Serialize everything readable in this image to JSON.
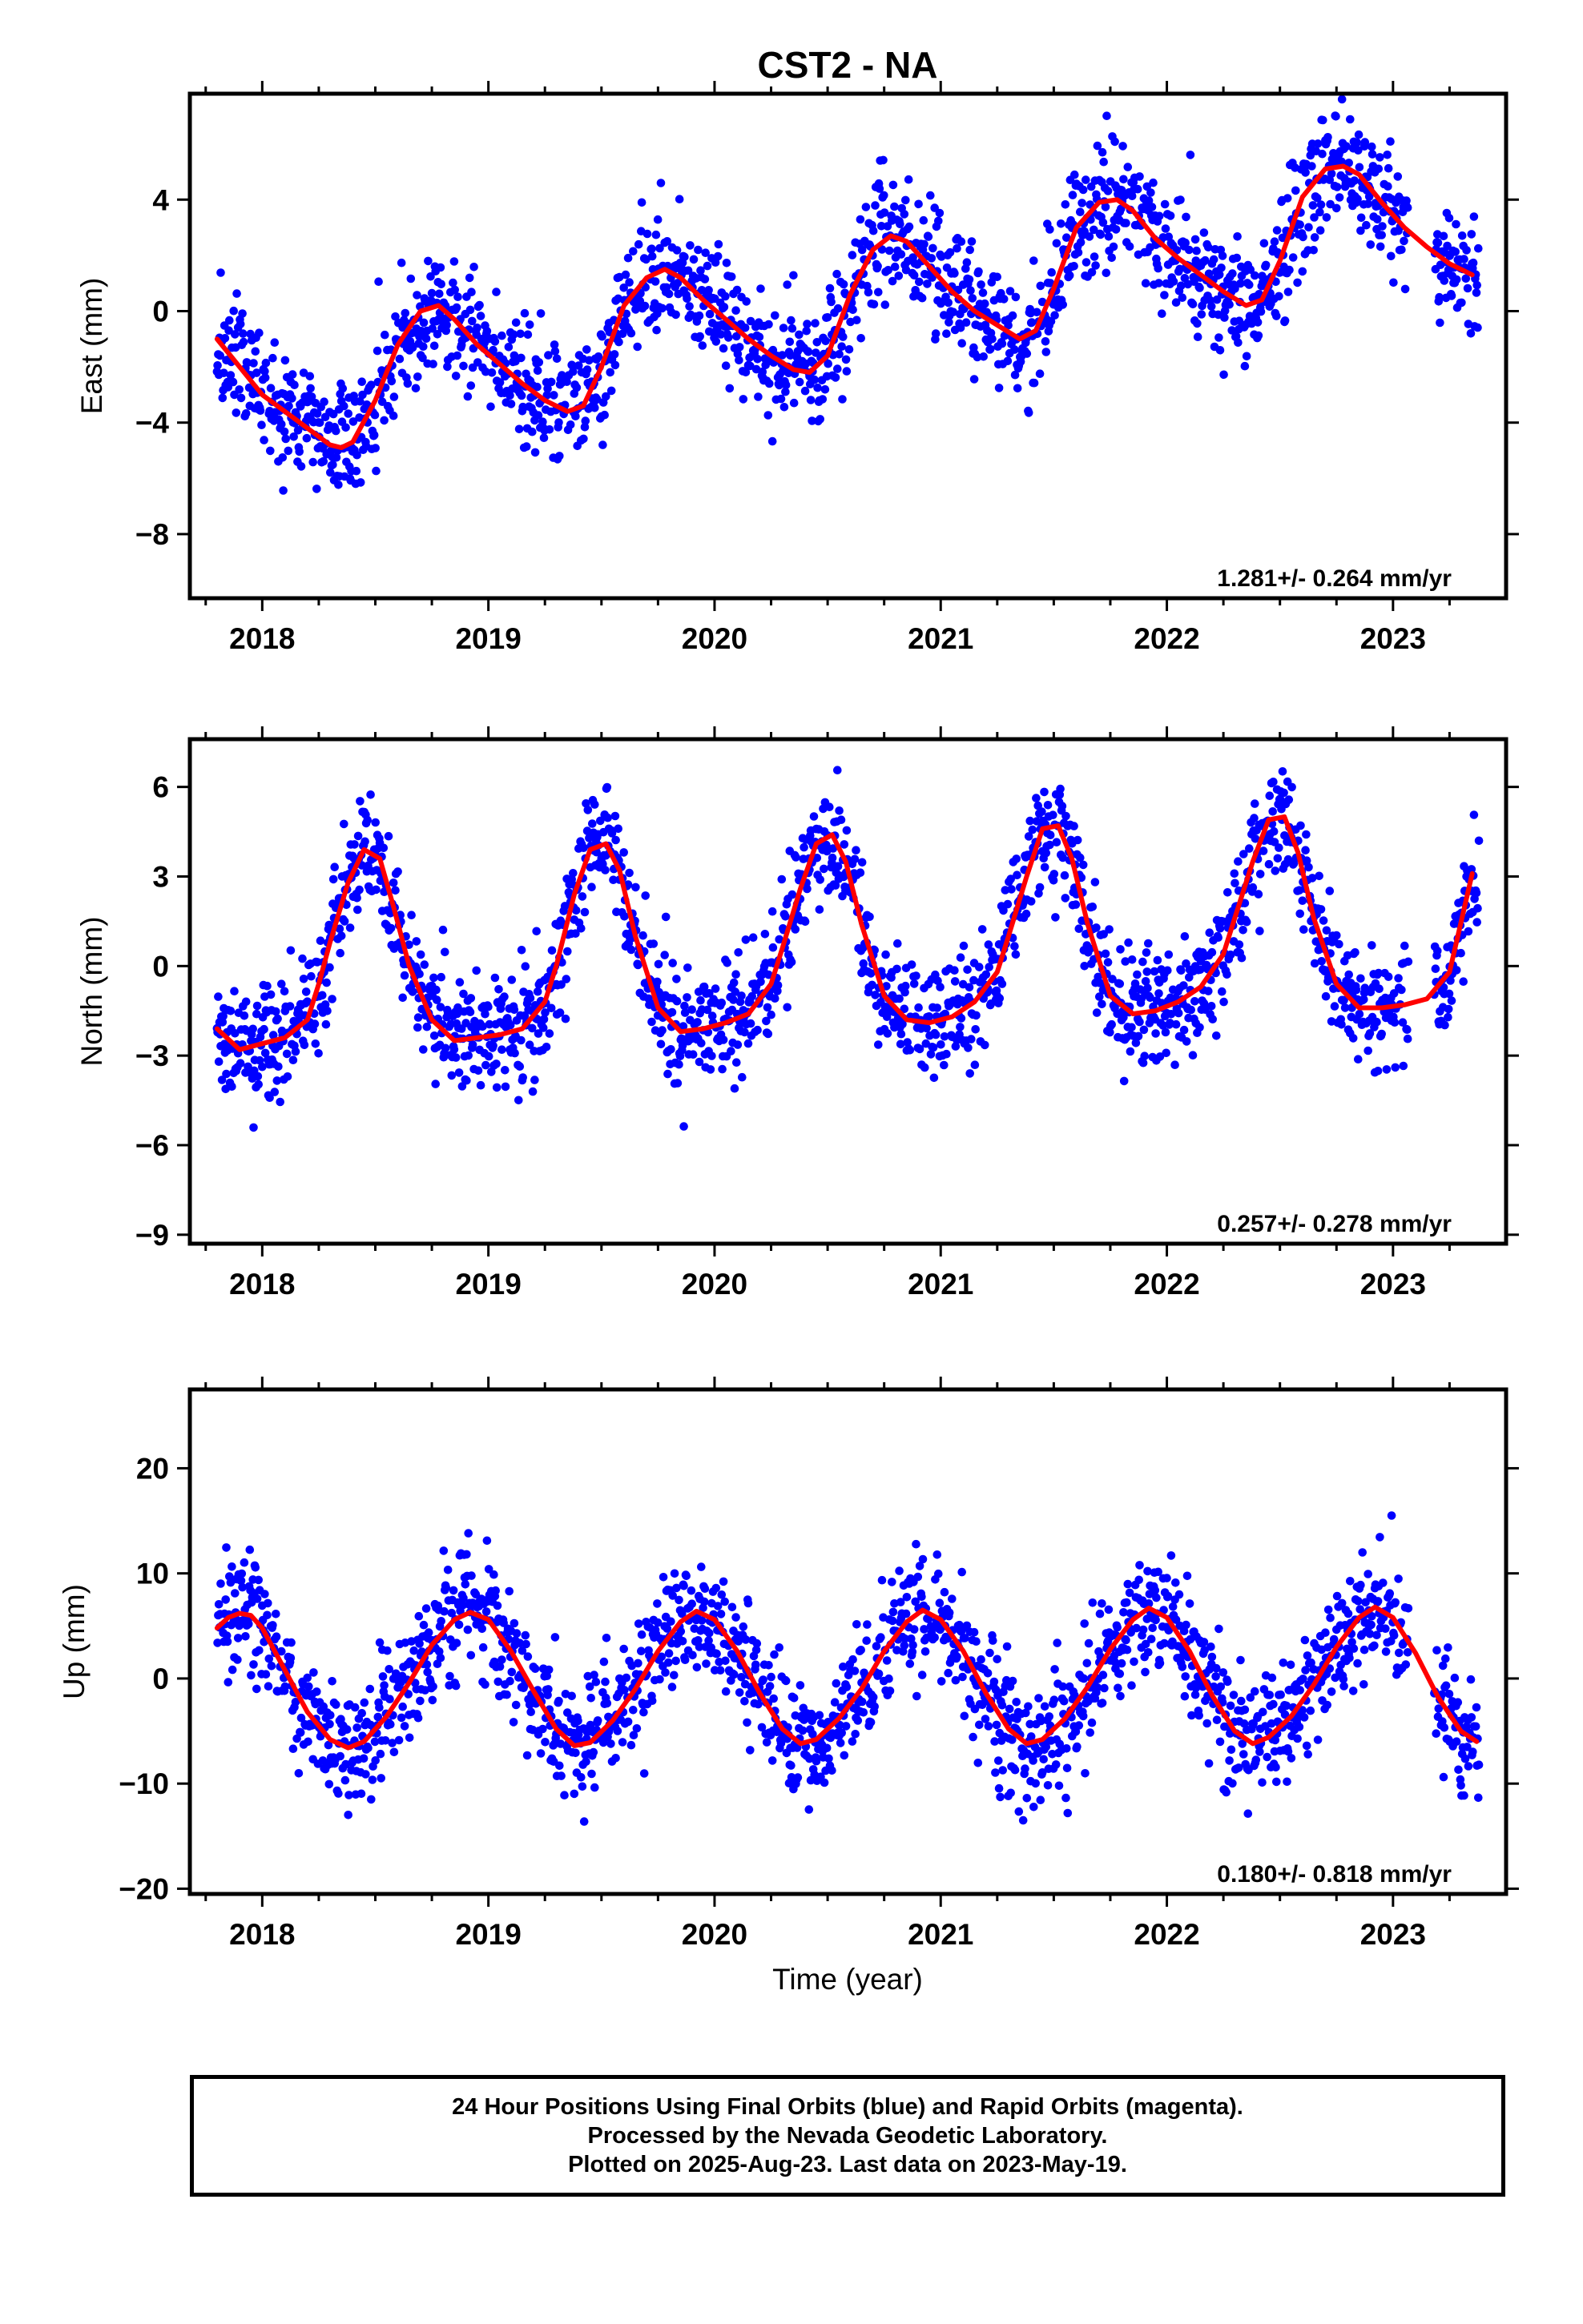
{
  "title": "CST2 - NA",
  "x_axis_label": "Time (year)",
  "footer": {
    "line1": "24 Hour Positions Using Final Orbits (blue) and Rapid Orbits (magenta).",
    "line2": "Processed by the Nevada Geodetic Laboratory.",
    "line3": "Plotted on 2025-Aug-23. Last data on 2023-May-19."
  },
  "colors": {
    "points": "#0000ff",
    "model": "#ff0000",
    "axes": "#000000"
  },
  "chart_data": [
    {
      "type": "scatter",
      "panel": "east",
      "ylabel": "East (mm)",
      "xlim": [
        2017.68,
        2023.5
      ],
      "ylim": [
        -10.3,
        7.8
      ],
      "xticks": [
        2018,
        2019,
        2020,
        2021,
        2022,
        2023
      ],
      "xtick_labels": [
        "2018",
        "2019",
        "2020",
        "2021",
        "2022",
        "2023"
      ],
      "yticks": [
        -8,
        -4,
        0,
        4
      ],
      "ytick_labels": [
        "-8",
        "-4",
        "0",
        "4"
      ],
      "rate_text": "1.281+/- 0.264 mm/yr",
      "series": [
        {
          "values_kind": "daily positions (blue)"
        },
        {
          "values_kind": "model fit (red)",
          "x": [
            2017.8,
            2017.9,
            2018.0,
            2018.1,
            2018.2,
            2018.3,
            2018.35,
            2018.4,
            2018.5,
            2018.6,
            2018.7,
            2018.78,
            2018.85,
            2018.95,
            2019.05,
            2019.15,
            2019.25,
            2019.35,
            2019.42,
            2019.5,
            2019.6,
            2019.7,
            2019.78,
            2019.85,
            2019.95,
            2020.05,
            2020.15,
            2020.25,
            2020.35,
            2020.42,
            2020.5,
            2020.6,
            2020.7,
            2020.78,
            2020.85,
            2020.95,
            2021.05,
            2021.15,
            2021.25,
            2021.35,
            2021.42,
            2021.5,
            2021.6,
            2021.7,
            2021.78,
            2021.85,
            2021.95,
            2022.05,
            2022.15,
            2022.25,
            2022.35,
            2022.42,
            2022.5,
            2022.6,
            2022.7,
            2022.78,
            2022.85,
            2022.95,
            2023.05,
            2023.15,
            2023.25,
            2023.35
          ],
          "y": [
            -1.0,
            -2.0,
            -3.0,
            -3.6,
            -4.2,
            -4.8,
            -4.9,
            -4.7,
            -3.2,
            -1.2,
            0.0,
            0.2,
            -0.3,
            -1.2,
            -1.9,
            -2.6,
            -3.2,
            -3.6,
            -3.4,
            -2.0,
            0.2,
            1.2,
            1.5,
            1.2,
            0.4,
            -0.3,
            -1.0,
            -1.6,
            -2.1,
            -2.2,
            -1.6,
            0.6,
            2.2,
            2.7,
            2.5,
            1.6,
            0.7,
            0.0,
            -0.5,
            -1.0,
            -0.7,
            0.8,
            3.0,
            3.9,
            4.0,
            3.6,
            2.6,
            1.9,
            1.3,
            0.7,
            0.2,
            0.4,
            1.8,
            4.1,
            5.1,
            5.2,
            4.9,
            3.9,
            3.0,
            2.3,
            1.7,
            1.3
          ]
        }
      ]
    },
    {
      "type": "scatter",
      "panel": "north",
      "ylabel": "North (mm)",
      "xlim": [
        2017.68,
        2023.5
      ],
      "ylim": [
        -9.3,
        7.6
      ],
      "xticks": [
        2018,
        2019,
        2020,
        2021,
        2022,
        2023
      ],
      "xtick_labels": [
        "2018",
        "2019",
        "2020",
        "2021",
        "2022",
        "2023"
      ],
      "yticks": [
        -9,
        -6,
        -3,
        0,
        3,
        6
      ],
      "ytick_labels": [
        "-9",
        "-6",
        "-3",
        "0",
        "3",
        "6"
      ],
      "rate_text": "0.257+/- 0.278 mm/yr",
      "series": [
        {
          "values_kind": "daily positions (blue)"
        },
        {
          "values_kind": "model fit (red)",
          "x": [
            2017.8,
            2017.9,
            2018.0,
            2018.1,
            2018.2,
            2018.25,
            2018.3,
            2018.38,
            2018.45,
            2018.52,
            2018.58,
            2018.65,
            2018.75,
            2018.85,
            2018.95,
            2019.05,
            2019.15,
            2019.25,
            2019.3,
            2019.38,
            2019.45,
            2019.52,
            2019.58,
            2019.65,
            2019.75,
            2019.85,
            2019.95,
            2020.05,
            2020.15,
            2020.25,
            2020.3,
            2020.38,
            2020.45,
            2020.52,
            2020.58,
            2020.65,
            2020.75,
            2020.85,
            2020.95,
            2021.05,
            2021.15,
            2021.25,
            2021.3,
            2021.38,
            2021.45,
            2021.52,
            2021.58,
            2021.65,
            2021.75,
            2021.85,
            2021.95,
            2022.05,
            2022.15,
            2022.25,
            2022.3,
            2022.38,
            2022.45,
            2022.52,
            2022.58,
            2022.65,
            2022.75,
            2022.85,
            2022.95,
            2023.05,
            2023.15,
            2023.25,
            2023.35
          ],
          "y": [
            -2.1,
            -2.8,
            -2.6,
            -2.4,
            -1.8,
            -0.6,
            0.8,
            2.8,
            3.9,
            3.6,
            2.0,
            0.0,
            -1.8,
            -2.5,
            -2.4,
            -2.3,
            -2.1,
            -1.2,
            0.0,
            2.4,
            3.9,
            4.1,
            3.2,
            1.0,
            -1.4,
            -2.2,
            -2.1,
            -1.9,
            -1.6,
            -0.6,
            0.6,
            2.6,
            4.1,
            4.4,
            3.5,
            1.4,
            -1.0,
            -1.8,
            -1.9,
            -1.7,
            -1.2,
            -0.2,
            1.0,
            3.0,
            4.6,
            4.7,
            3.6,
            1.4,
            -1.0,
            -1.6,
            -1.5,
            -1.2,
            -0.7,
            0.4,
            1.6,
            3.5,
            4.9,
            5.0,
            3.8,
            1.6,
            -0.6,
            -1.4,
            -1.4,
            -1.3,
            -1.1,
            -0.2,
            3.1
          ]
        }
      ]
    },
    {
      "type": "scatter",
      "panel": "up",
      "ylabel": "Up (mm)",
      "xlim": [
        2017.68,
        2023.5
      ],
      "ylim": [
        -20.5,
        27.5
      ],
      "xticks": [
        2018,
        2019,
        2020,
        2021,
        2022,
        2023
      ],
      "xtick_labels": [
        "2018",
        "2019",
        "2020",
        "2021",
        "2022",
        "2023"
      ],
      "yticks": [
        -20,
        -10,
        0,
        10,
        20
      ],
      "ytick_labels": [
        "-20",
        "-10",
        "0",
        "10",
        "20"
      ],
      "rate_text": "0.180+/- 0.818 mm/yr",
      "series": [
        {
          "values_kind": "daily positions (blue)"
        },
        {
          "values_kind": "model fit (red)",
          "x": [
            2017.8,
            2017.85,
            2017.9,
            2017.95,
            2018.0,
            2018.05,
            2018.1,
            2018.2,
            2018.3,
            2018.38,
            2018.45,
            2018.55,
            2018.65,
            2018.75,
            2018.85,
            2018.92,
            2019.0,
            2019.1,
            2019.2,
            2019.3,
            2019.38,
            2019.45,
            2019.55,
            2019.65,
            2019.75,
            2019.85,
            2019.92,
            2020.0,
            2020.1,
            2020.2,
            2020.3,
            2020.38,
            2020.45,
            2020.55,
            2020.65,
            2020.75,
            2020.85,
            2020.92,
            2021.0,
            2021.1,
            2021.2,
            2021.3,
            2021.38,
            2021.45,
            2021.55,
            2021.65,
            2021.75,
            2021.85,
            2021.92,
            2022.0,
            2022.1,
            2022.2,
            2022.3,
            2022.38,
            2022.45,
            2022.55,
            2022.65,
            2022.75,
            2022.85,
            2022.92,
            2023.0,
            2023.1,
            2023.2,
            2023.3,
            2023.37
          ],
          "y": [
            4.8,
            5.8,
            6.2,
            6.0,
            4.8,
            2.8,
            0.8,
            -3.2,
            -5.8,
            -6.6,
            -6.0,
            -3.6,
            -0.4,
            3.2,
            5.6,
            6.3,
            5.6,
            2.6,
            -1.2,
            -4.8,
            -6.4,
            -6.1,
            -4.0,
            -1.0,
            2.6,
            5.4,
            6.4,
            5.6,
            2.6,
            -1.4,
            -4.8,
            -6.2,
            -5.8,
            -3.8,
            -1.0,
            2.6,
            5.4,
            6.5,
            5.6,
            2.6,
            -1.4,
            -4.8,
            -6.2,
            -5.8,
            -3.8,
            -0.8,
            2.8,
            5.6,
            6.7,
            5.8,
            2.6,
            -1.6,
            -5.0,
            -6.2,
            -5.6,
            -3.6,
            -0.6,
            3.0,
            5.8,
            6.8,
            5.8,
            2.4,
            -1.8,
            -5.0,
            -6.0
          ]
        }
      ]
    }
  ]
}
